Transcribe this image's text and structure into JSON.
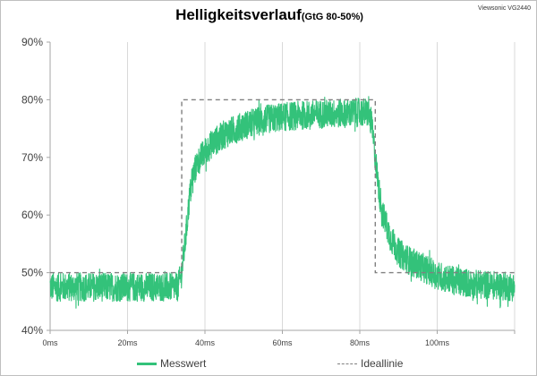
{
  "header": {
    "title": "Helligkeitsverlauf",
    "subtitle": "(GtG 80-50%)",
    "brand": "Viewsonic VG2440"
  },
  "chart_data": {
    "type": "line",
    "title": "Helligkeitsverlauf (GtG 80-50%)",
    "xlabel": "",
    "ylabel": "",
    "xlim": [
      0,
      120
    ],
    "ylim": [
      40,
      90
    ],
    "x_ticks": [
      "0ms",
      "20ms",
      "40ms",
      "60ms",
      "80ms",
      "100ms"
    ],
    "x_tick_values": [
      0,
      20,
      40,
      60,
      80,
      100
    ],
    "y_ticks": [
      "40%",
      "50%",
      "60%",
      "70%",
      "80%",
      "90%"
    ],
    "y_tick_values": [
      40,
      50,
      60,
      70,
      80,
      90
    ],
    "grid": "vertical",
    "legend_position": "bottom",
    "colors": {
      "messwert": "#33c27a",
      "ideallinie": "#808080",
      "grid": "#d9d9d9"
    },
    "series": [
      {
        "name": "Messwert",
        "style": "noisy-solid",
        "noise_band": 2.5,
        "x": [
          0,
          5,
          10,
          15,
          20,
          25,
          30,
          33,
          34,
          35,
          36,
          37,
          38,
          40,
          42,
          45,
          50,
          55,
          60,
          65,
          70,
          75,
          80,
          82,
          83,
          84,
          85,
          86,
          88,
          90,
          93,
          96,
          100,
          105,
          110,
          115,
          120
        ],
        "values": [
          47.5,
          47.5,
          47.5,
          47.5,
          47.5,
          47.5,
          47.5,
          47.5,
          50,
          56,
          63,
          67,
          69,
          71,
          72.5,
          74,
          75.5,
          76.5,
          77,
          77.3,
          77.5,
          77.6,
          77.8,
          77.8,
          76,
          70,
          64,
          60,
          56,
          53.5,
          52,
          51,
          49.5,
          48.5,
          48,
          47.8,
          47.5
        ]
      },
      {
        "name": "Ideallinie",
        "style": "dashed",
        "x": [
          0,
          34,
          34,
          84,
          84,
          120
        ],
        "values": [
          50,
          50,
          80,
          80,
          50,
          50
        ]
      }
    ]
  },
  "legend": {
    "items": [
      {
        "label": "Messwert"
      },
      {
        "label": "Ideallinie"
      }
    ]
  }
}
